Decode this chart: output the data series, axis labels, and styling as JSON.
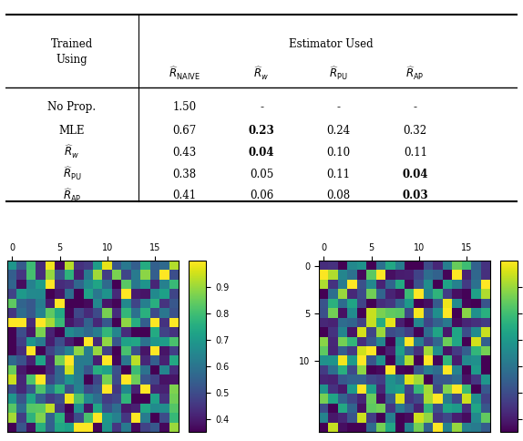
{
  "table": {
    "row_headers": [
      "No Prop.",
      "MLE",
      "R_w",
      "R_PU",
      "R_AP"
    ],
    "col_headers": [
      "R_NAIVE",
      "R_w",
      "R_PU",
      "R_AP"
    ],
    "values": [
      [
        "1.50",
        "-",
        "-",
        "-"
      ],
      [
        "0.67",
        "0.23",
        "0.24",
        "0.32"
      ],
      [
        "0.43",
        "0.04",
        "0.10",
        "0.11"
      ],
      [
        "0.38",
        "0.05",
        "0.11",
        "0.04"
      ],
      [
        "0.41",
        "0.06",
        "0.08",
        "0.03"
      ]
    ],
    "bold": [
      [
        false,
        false,
        false,
        false
      ],
      [
        false,
        true,
        false,
        false
      ],
      [
        false,
        true,
        false,
        false
      ],
      [
        false,
        false,
        false,
        true
      ],
      [
        false,
        false,
        false,
        true
      ]
    ]
  },
  "heatmap_size": 18,
  "colorbar_ticks": [
    0.4,
    0.5,
    0.6,
    0.7,
    0.8,
    0.9
  ],
  "cmap": "viridis",
  "vmin": 0.35,
  "vmax": 1.0
}
